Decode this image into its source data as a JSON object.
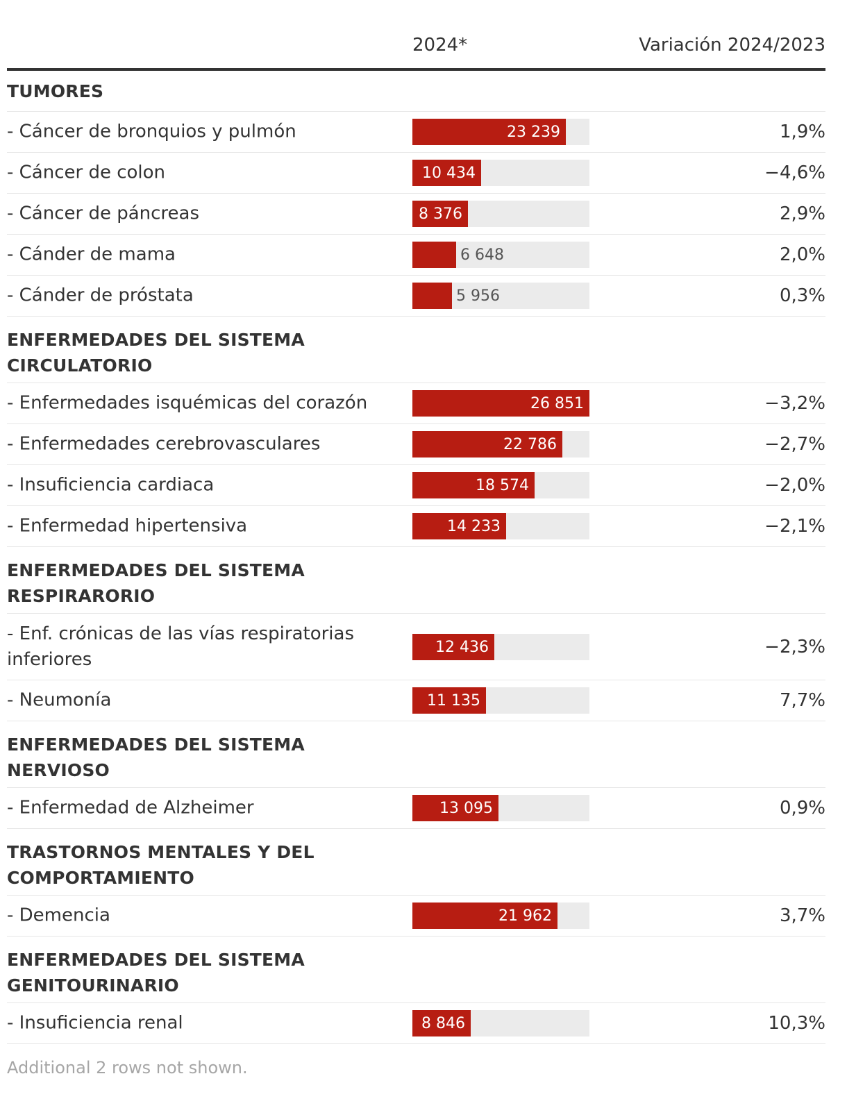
{
  "header": {
    "value_column": "2024*",
    "change_column": "Variación 2024/2023"
  },
  "chart_data": {
    "type": "table",
    "value_max": 26851,
    "groups": [
      {
        "label": "TUMORES",
        "items": [
          {
            "label": "- Cáncer de bronquios y pulmón",
            "value": 23239,
            "value_label": "23 239",
            "change": "1,9%"
          },
          {
            "label": "- Cáncer de colon",
            "value": 10434,
            "value_label": "10 434",
            "change": "−4,6%"
          },
          {
            "label": "- Cáncer de páncreas",
            "value": 8376,
            "value_label": "8 376",
            "change": "2,9%"
          },
          {
            "label": "- Cánder de mama",
            "value": 6648,
            "value_label": "6 648",
            "change": "2,0%"
          },
          {
            "label": "- Cánder de próstata",
            "value": 5956,
            "value_label": "5 956",
            "change": "0,3%"
          }
        ]
      },
      {
        "label": "ENFERMEDADES DEL SISTEMA CIRCULATORIO",
        "items": [
          {
            "label": "- Enfermedades isquémicas del corazón",
            "value": 26851,
            "value_label": "26 851",
            "change": "−3,2%"
          },
          {
            "label": "- Enfermedades cerebrovasculares",
            "value": 22786,
            "value_label": "22 786",
            "change": "−2,7%"
          },
          {
            "label": "- Insuficiencia cardiaca",
            "value": 18574,
            "value_label": "18 574",
            "change": "−2,0%"
          },
          {
            "label": "- Enfermedad hipertensiva",
            "value": 14233,
            "value_label": "14 233",
            "change": "−2,1%"
          }
        ]
      },
      {
        "label": "ENFERMEDADES DEL SISTEMA RESPIRARORIO",
        "items": [
          {
            "label": "- Enf. crónicas de las vías respiratorias inferiores",
            "value": 12436,
            "value_label": "12 436",
            "change": "−2,3%"
          },
          {
            "label": "- Neumonía",
            "value": 11135,
            "value_label": "11 135",
            "change": "7,7%"
          }
        ]
      },
      {
        "label": "ENFERMEDADES DEL SISTEMA NERVIOSO",
        "items": [
          {
            "label": "- Enfermedad de Alzheimer",
            "value": 13095,
            "value_label": "13 095",
            "change": "0,9%"
          }
        ]
      },
      {
        "label": "TRASTORNOS MENTALES Y DEL COMPORTAMIENTO",
        "items": [
          {
            "label": "- Demencia",
            "value": 21962,
            "value_label": "21 962",
            "change": "3,7%"
          }
        ]
      },
      {
        "label": "ENFERMEDADES DEL SISTEMA GENITOURINARIO",
        "items": [
          {
            "label": "- Insuficiencia renal",
            "value": 8846,
            "value_label": "8 846",
            "change": "10,3%"
          }
        ]
      }
    ]
  },
  "footnote": "Additional 2 rows not shown.",
  "colors": {
    "bar": "#b71d12",
    "track": "#ebebeb"
  }
}
